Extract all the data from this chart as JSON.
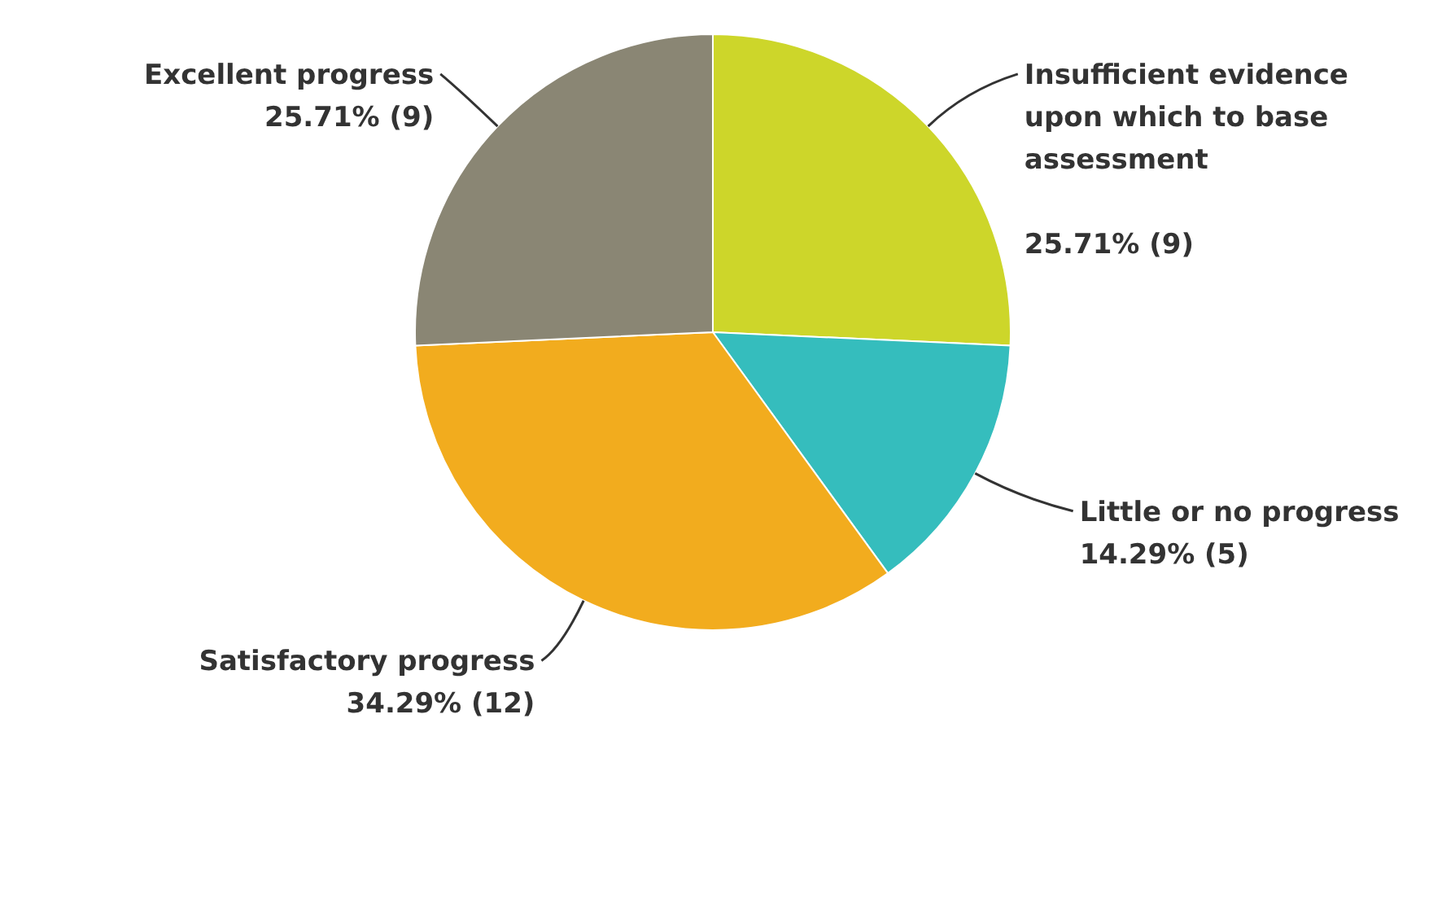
{
  "chart_data": {
    "type": "pie",
    "categories": [
      "Insufficient evidence upon which to base assessment",
      "Little or no progress",
      "Satisfactory progress",
      "Excellent progress"
    ],
    "values": [
      9,
      5,
      12,
      9
    ],
    "value_labels": [
      "25.71% (9)",
      "14.29% (5)",
      "34.29% (12)",
      "25.71% (9)"
    ],
    "colors": [
      "#cdd62a",
      "#35bdbd",
      "#f2ac1e",
      "#8a8674"
    ]
  }
}
